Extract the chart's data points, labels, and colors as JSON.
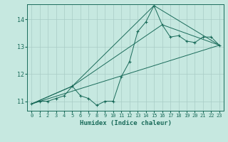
{
  "xlabel": "Humidex (Indice chaleur)",
  "bg_color": "#c6e8e0",
  "grid_color": "#a8ccc6",
  "line_color": "#1a6b5a",
  "xlim": [
    -0.5,
    23.5
  ],
  "ylim": [
    10.65,
    14.55
  ],
  "yticks": [
    11,
    12,
    13,
    14
  ],
  "xticks": [
    0,
    1,
    2,
    3,
    4,
    5,
    6,
    7,
    8,
    9,
    10,
    11,
    12,
    13,
    14,
    15,
    16,
    17,
    18,
    19,
    20,
    21,
    22,
    23
  ],
  "series1_x": [
    0,
    1,
    2,
    3,
    4,
    5,
    6,
    7,
    8,
    9,
    10,
    11,
    12,
    13,
    14,
    15,
    16,
    17,
    18,
    19,
    20,
    21,
    22,
    23
  ],
  "series1_y": [
    10.9,
    11.0,
    11.0,
    11.1,
    11.2,
    11.55,
    11.2,
    11.1,
    10.85,
    11.0,
    11.0,
    11.9,
    12.45,
    13.55,
    13.9,
    14.5,
    13.8,
    13.35,
    13.4,
    13.2,
    13.15,
    13.35,
    13.35,
    13.05
  ],
  "line2_x": [
    0,
    5,
    23
  ],
  "line2_y": [
    10.9,
    11.55,
    13.05
  ],
  "line3_x": [
    0,
    5,
    23
  ],
  "line3_y": [
    10.9,
    11.55,
    13.05
  ],
  "line4_x": [
    0,
    5,
    23
  ],
  "line4_y": [
    10.9,
    11.55,
    13.05
  ],
  "line5_x": [
    0,
    5,
    15,
    23
  ],
  "line5_y": [
    10.9,
    11.55,
    14.5,
    13.05
  ],
  "line6_x": [
    0,
    5,
    16,
    23
  ],
  "line6_y": [
    10.9,
    11.55,
    13.8,
    13.05
  ],
  "line7_x": [
    0,
    23
  ],
  "line7_y": [
    10.9,
    13.05
  ]
}
